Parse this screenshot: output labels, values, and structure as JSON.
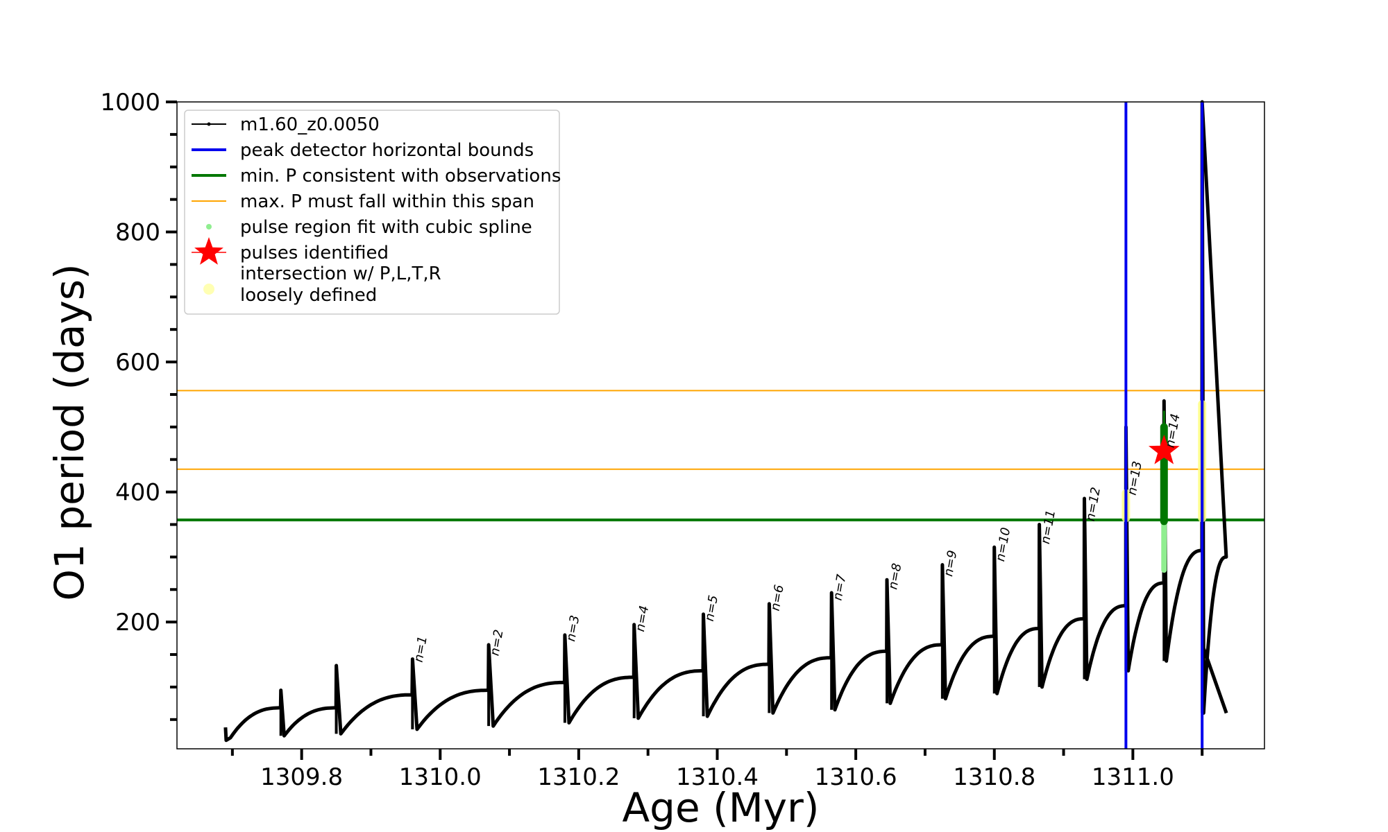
{
  "chart_data": {
    "type": "line",
    "xlabel": "Age (Myr)",
    "ylabel": "O1 period (days)",
    "xlim": [
      1309.62,
      1311.19
    ],
    "ylim": [
      5,
      1000
    ],
    "x_major_ticks": [
      1309.8,
      1310.0,
      1310.2,
      1310.4,
      1310.6,
      1310.8,
      1311.0
    ],
    "x_tick_labels": [
      "1309.8",
      "1310.0",
      "1310.2",
      "1310.4",
      "1310.6",
      "1310.8",
      "1311.0"
    ],
    "y_major_ticks": [
      200,
      400,
      600,
      800,
      1000
    ],
    "y_tick_labels": [
      "200",
      "400",
      "600",
      "800",
      "1000"
    ],
    "grid": false,
    "legend_position": "top-left",
    "legend": [
      {
        "label": "m1.60_z0.0050",
        "style": "line-dot",
        "color": "#000000"
      },
      {
        "label": "peak detector horizontal bounds",
        "style": "line",
        "color": "#0000ee"
      },
      {
        "label": "min. P consistent with observations",
        "style": "line",
        "color": "#007700"
      },
      {
        "label": "max. P must fall within this span",
        "style": "thin-line",
        "color": "#ffa500"
      },
      {
        "label": "pulse region fit with cubic spline",
        "style": "dot",
        "color": "#90ee90"
      },
      {
        "label": "pulses identified",
        "style": "star",
        "color": "#ff0000"
      },
      {
        "label": "intersection w/ P,L,T,R",
        "label2": "loosely defined",
        "style": "big-dot",
        "color": "#ffffb3"
      }
    ],
    "series_main": {
      "name": "m1.60_z0.0050",
      "color": "#000000",
      "pulses": [
        {
          "start": 1309.69,
          "base": 18,
          "top": 68,
          "peak": 95,
          "min": 25
        },
        {
          "start": 1309.77,
          "base": 25,
          "top": 68,
          "peak": 95,
          "min": 25
        },
        {
          "start": 1309.85,
          "base": 28,
          "top": 88,
          "peak": 133,
          "min": 28
        },
        {
          "start": 1309.96,
          "base": 28,
          "top": 95,
          "peak": 143,
          "min": 35
        },
        {
          "start": 1310.07,
          "base": 35,
          "top": 107,
          "peak": 165,
          "min": 40
        },
        {
          "start": 1310.18,
          "base": 40,
          "top": 115,
          "peak": 180,
          "min": 45
        },
        {
          "start": 1310.28,
          "base": 45,
          "top": 125,
          "peak": 196,
          "min": 52
        },
        {
          "start": 1310.38,
          "base": 52,
          "top": 135,
          "peak": 212,
          "min": 55
        },
        {
          "start": 1310.475,
          "base": 55,
          "top": 145,
          "peak": 228,
          "min": 60
        },
        {
          "start": 1310.565,
          "base": 60,
          "top": 155,
          "peak": 245,
          "min": 65
        },
        {
          "start": 1310.645,
          "base": 65,
          "top": 165,
          "peak": 265,
          "min": 75
        },
        {
          "start": 1310.725,
          "base": 75,
          "top": 178,
          "peak": 288,
          "min": 82
        },
        {
          "start": 1310.8,
          "base": 82,
          "top": 190,
          "peak": 315,
          "min": 90
        },
        {
          "start": 1310.865,
          "base": 90,
          "top": 205,
          "peak": 350,
          "min": 100
        },
        {
          "start": 1310.93,
          "base": 100,
          "top": 225,
          "peak": 390,
          "min": 112
        },
        {
          "start": 1310.99,
          "base": 112,
          "top": 260,
          "peak": 500,
          "min": 125
        },
        {
          "start": 1311.045,
          "base": 125,
          "top": 310,
          "peak": 540,
          "min": 140
        },
        {
          "start": 1311.1,
          "base": 140,
          "top": 300,
          "peak": 1000,
          "min": 60
        }
      ],
      "end": 1311.135
    },
    "vertical_lines": [
      {
        "x": 1310.99,
        "color": "#0000ee"
      },
      {
        "x": 1311.1,
        "color": "#0000ee"
      }
    ],
    "horizontal_lines": [
      {
        "y": 357,
        "color": "#007700",
        "width": "thick"
      },
      {
        "y": 435,
        "color": "#ffa500",
        "width": "thin"
      },
      {
        "y": 556,
        "color": "#ffa500",
        "width": "thin"
      }
    ],
    "yellow_regions": [
      {
        "x": 1310.99,
        "y_min": 360,
        "y_max": 398
      },
      {
        "x": 1311.1,
        "y_min": 360,
        "y_max": 535
      }
    ],
    "spline_region": {
      "x": 1311.045,
      "y_min": 280,
      "y_max": 500
    },
    "green_region": {
      "x": 1311.045,
      "y_min": 355,
      "y_max": 525
    },
    "star": {
      "x": 1311.045,
      "y": 463
    },
    "pulse_labels": [
      {
        "text": "n=1",
        "x": 1309.96,
        "y": 133
      },
      {
        "text": "n=2",
        "x": 1310.07,
        "y": 143
      },
      {
        "text": "n=3",
        "x": 1310.18,
        "y": 165
      },
      {
        "text": "n=4",
        "x": 1310.28,
        "y": 180
      },
      {
        "text": "n=5",
        "x": 1310.38,
        "y": 196
      },
      {
        "text": "n=6",
        "x": 1310.475,
        "y": 212
      },
      {
        "text": "n=7",
        "x": 1310.565,
        "y": 228
      },
      {
        "text": "n=8",
        "x": 1310.645,
        "y": 245
      },
      {
        "text": "n=9",
        "x": 1310.725,
        "y": 265
      },
      {
        "text": "n=10",
        "x": 1310.8,
        "y": 288
      },
      {
        "text": "n=11",
        "x": 1310.865,
        "y": 315
      },
      {
        "text": "n=12",
        "x": 1310.93,
        "y": 350
      },
      {
        "text": "n=13",
        "x": 1310.99,
        "y": 390
      },
      {
        "text": "n=14",
        "x": 1311.045,
        "y": 463
      }
    ]
  }
}
